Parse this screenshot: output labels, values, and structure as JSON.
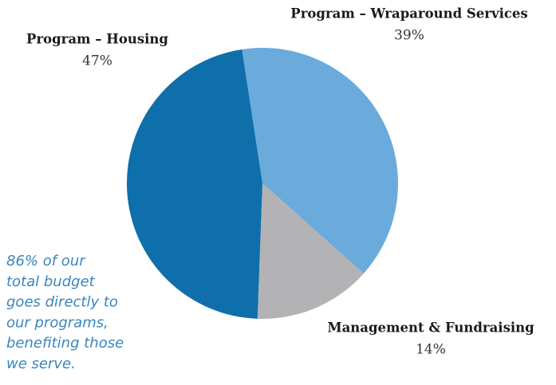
{
  "chart_data": {
    "type": "pie",
    "categories": [
      "Program – Wraparound Services",
      "Management & Fundraising",
      "Program – Housing"
    ],
    "values": [
      39,
      14,
      47
    ],
    "value_labels": [
      "39%",
      "14%",
      "47%"
    ],
    "colors": [
      "#6aabdc",
      "#b3b2b4",
      "#0e6fab"
    ],
    "note": [
      "86% of our",
      "total budget",
      "goes directly to",
      "our programs,",
      "benefiting those",
      "we serve."
    ]
  }
}
